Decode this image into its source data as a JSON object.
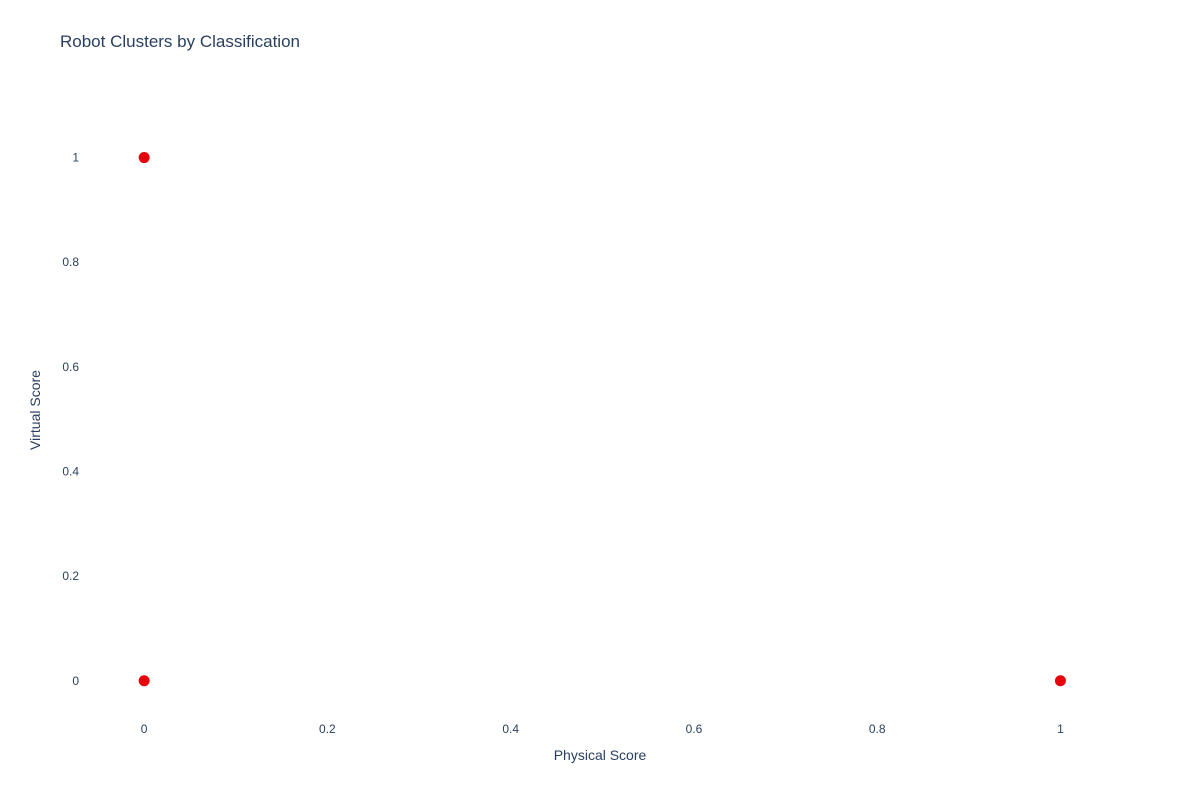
{
  "chart_data": {
    "type": "scatter",
    "title": "Robot Clusters by Classification",
    "xlabel": "Physical Score",
    "ylabel": "Virtual Score",
    "xlim": [
      -0.07,
      1.065
    ],
    "ylim": [
      -0.075,
      1.11
    ],
    "x_ticks": [
      0,
      0.2,
      0.4,
      0.6,
      0.8,
      1
    ],
    "y_ticks": [
      0,
      0.2,
      0.4,
      0.6,
      0.8,
      1
    ],
    "grid": false,
    "legend": "none",
    "marker_color": "#e8000b",
    "series": [
      {
        "points": [
          {
            "x": 0,
            "y": 1
          },
          {
            "x": 0,
            "y": 0
          },
          {
            "x": 1,
            "y": 0
          }
        ]
      }
    ]
  }
}
